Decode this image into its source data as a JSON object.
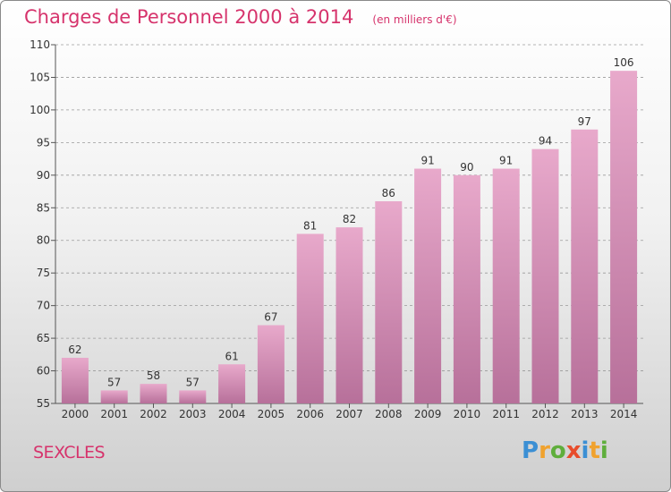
{
  "title": "Charges de Personnel 2000 à 2014",
  "subtitle": "(en milliers d'€)",
  "commune": "SEXCLES",
  "logo": {
    "letters": [
      "P",
      "r",
      "o",
      "x",
      "i",
      "t",
      "i"
    ],
    "colors": [
      "#3b8fd4",
      "#f0a22e",
      "#5fae3c",
      "#e84d2c",
      "#3b8fd4",
      "#f0a22e",
      "#5fae3c"
    ]
  },
  "colors": {
    "accent": "#d6336c",
    "bar_top": "#e8a9cb",
    "bar_bottom": "#b7709a"
  },
  "chart_data": {
    "type": "bar",
    "title": "Charges de Personnel 2000 à 2014",
    "subtitle": "(en milliers d'€)",
    "categories": [
      "2000",
      "2001",
      "2002",
      "2003",
      "2004",
      "2005",
      "2006",
      "2007",
      "2008",
      "2009",
      "2010",
      "2011",
      "2012",
      "2013",
      "2014"
    ],
    "values": [
      62,
      57,
      58,
      57,
      61,
      67,
      81,
      82,
      86,
      91,
      90,
      91,
      94,
      97,
      106
    ],
    "ylim": [
      55,
      110
    ],
    "yticks": [
      55,
      60,
      65,
      70,
      75,
      80,
      85,
      90,
      95,
      100,
      105,
      110
    ],
    "grid": "dashed-horizontal",
    "legend": "none"
  }
}
